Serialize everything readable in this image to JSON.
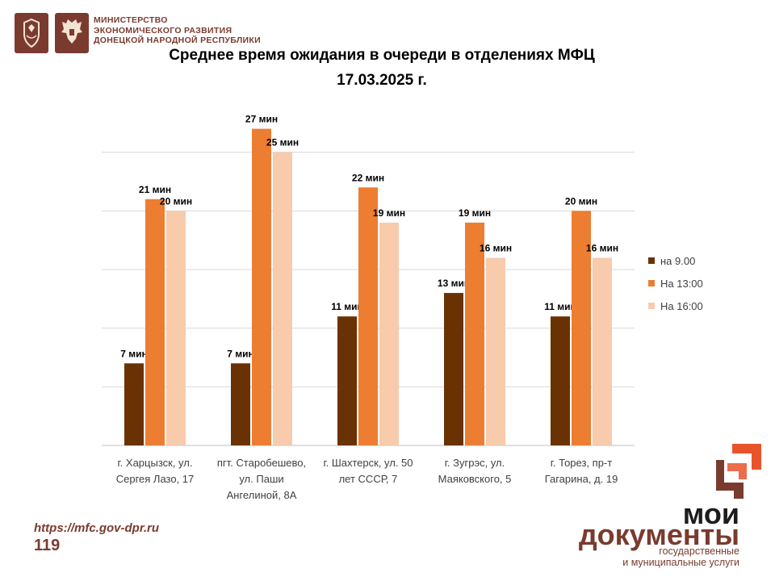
{
  "header": {
    "ministry_lines": [
      "МИНИСТЕРСТВО",
      "ЭКОНОМИЧЕСКОГО РАЗВИТИЯ",
      "ДОНЕЦКОЙ НАРОДНОЙ РЕСПУБЛИКИ"
    ],
    "title_line1": "Среднее время ожидания в очереди в отделениях МФЦ",
    "title_line2": "17.03.2025   г."
  },
  "chart_data": {
    "type": "bar",
    "title": "Среднее время ожидания в очереди в отделениях МФЦ 17.03.2025 г.",
    "categories": [
      [
        "г. Харцызск, ул.",
        "Сергея Лазо, 17"
      ],
      [
        "пгт. Старобешево,",
        "ул. Паши",
        "Ангелиной, 8А"
      ],
      [
        "г. Шахтерск, ул. 50",
        "лет СССР, 7"
      ],
      [
        "г. Зугрэс, ул.",
        "Маяковского, 5"
      ],
      [
        "г. Торез, пр-т",
        "Гагарина, д. 19"
      ]
    ],
    "series": [
      {
        "name": "на 9.00",
        "color": "#6a3203",
        "values": [
          7,
          7,
          11,
          13,
          11
        ],
        "labels": [
          "7 мин",
          "7 мин",
          "11 мин",
          "13 мин",
          "11 мин"
        ]
      },
      {
        "name": "На 13:00",
        "color": "#ed7d31",
        "values": [
          21,
          27,
          22,
          19,
          20
        ],
        "labels": [
          "21 мин",
          "27 мин",
          "22 мин",
          "19 мин",
          "20 мин"
        ]
      },
      {
        "name": "На 16:00",
        "color": "#f7cbac",
        "values": [
          20,
          25,
          19,
          16,
          16
        ],
        "labels": [
          "20 мин",
          "25 мин",
          "19 мин",
          "16 мин",
          "16 мин"
        ]
      }
    ],
    "ylim": [
      0,
      30
    ],
    "grid": true,
    "legend": "right"
  },
  "footer": {
    "url": "https://mfc.gov-dpr.ru",
    "page_number": "119"
  },
  "logo": {
    "line1": "мои",
    "line2": "документы",
    "sub1": "государственные",
    "sub2": "и муниципальные услуги"
  },
  "icons": [
    "coat-of-arms-icon",
    "double-headed-eagle-icon",
    "moi-dokumenty-logo-icon"
  ],
  "brand_color": "#7a3b2e"
}
